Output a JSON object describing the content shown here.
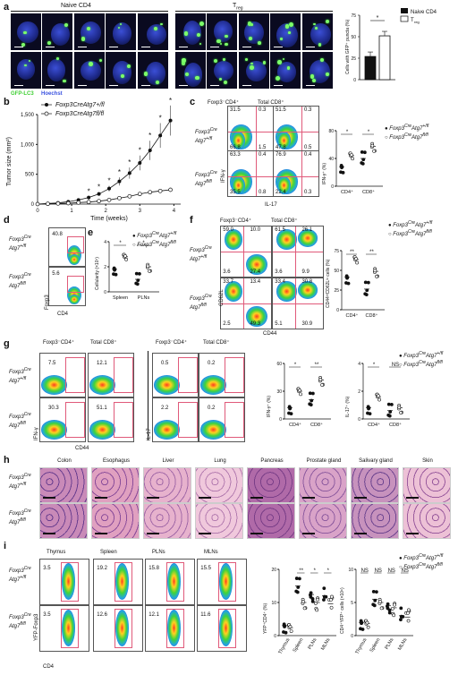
{
  "panels": {
    "a": {
      "letter": "a",
      "naive_label": "Naive CD4",
      "treg_label": "T",
      "treg_sub": "reg",
      "gfp_label": "GFP-LC3",
      "hoechst_label": "Hoechst",
      "ylabel": "Cells with GFP⁺ puncta (%)",
      "legend": [
        "Naive CD4",
        "T",
        "reg"
      ],
      "sig": "*",
      "ticks": [
        "0",
        "25",
        "50",
        "75"
      ]
    },
    "b": {
      "letter": "b",
      "ylabel": "Tumor size (mm²)",
      "xlabel": "Time (weeks)",
      "legend1_pre": "Foxp3",
      "legend1_sup1": "Cre",
      "legend1_mid": "Atg7",
      "legend1_sup2": "+/fl",
      "legend2_pre": "Foxp3",
      "legend2_sup1": "Cre",
      "legend2_mid": "Atg7",
      "legend2_sup2": "fl/fl",
      "yticks": [
        "0",
        "500",
        "1,000",
        "1,500"
      ],
      "xticks": [
        "0",
        "1",
        "2",
        "3",
        "4"
      ]
    },
    "c": {
      "letter": "c",
      "col1": "Foxp3⁻CD4⁺",
      "col2": "Total CD8⁺",
      "row1": [
        "Foxp3",
        "Cre",
        "Atg7",
        "+/fl"
      ],
      "row2": [
        "Foxp3",
        "Cre",
        "Atg7",
        "fl/fl"
      ],
      "q_r1c1": [
        "31.5",
        "0.3",
        "66.8",
        "1.5"
      ],
      "q_r1c2": [
        "51.5",
        "0.3",
        "47.8",
        "0.5"
      ],
      "q_r2c1": [
        "63.3",
        "0.4",
        "35.5",
        "0.8"
      ],
      "q_r2c2": [
        "76.9",
        "0.4",
        "22.4",
        "0.3"
      ],
      "ylab": "IFN-γ",
      "xlab": "IL-17",
      "dot_ylabel": "IFN-γ⁺ (%)",
      "dot_x": [
        "CD4⁺",
        "CD8⁺"
      ],
      "sig": [
        "*",
        "*"
      ],
      "yticks": [
        "0",
        "40",
        "80"
      ]
    },
    "d": {
      "letter": "d",
      "v1": "40.8",
      "v2": "5.6",
      "xlab": "CD4",
      "ylab": "Foxp3"
    },
    "e": {
      "letter": "e",
      "ylabel": "Cellularity (×10⁷)",
      "x": [
        "Spleen",
        "PLNs"
      ],
      "sig": [
        "*",
        "*"
      ],
      "yticks": [
        "0",
        "2",
        "4"
      ]
    },
    "f": {
      "letter": "f",
      "col1": "Foxp3⁻CD4⁺",
      "col2": "Total CD8⁺",
      "q_r1c1": [
        "59.0",
        "10.0",
        "3.6",
        "27.4"
      ],
      "q_r1c2": [
        "61.5",
        "26.1",
        "3.6",
        "9.9"
      ],
      "q_r2c1": [
        "33.7",
        "13.4",
        "2.5",
        "49.3"
      ],
      "q_r2c2": [
        "33.4",
        "30.8",
        "5.1",
        "30.9"
      ],
      "ylab": "CD62L",
      "xlab": "CD44",
      "dot_ylabel": "CD44ʰⁱCD62Lˡᵒ cells (%)",
      "dot_x": [
        "CD4⁺",
        "CD8⁺"
      ],
      "sig": [
        "**",
        "**"
      ],
      "yticks": [
        "0",
        "25",
        "50",
        "75"
      ]
    },
    "g": {
      "letter": "g",
      "cols": [
        "Foxp3⁻CD4⁺",
        "Total CD8⁺",
        "Foxp3⁻CD4⁺",
        "Total CD8⁺"
      ],
      "r1": [
        "7.5",
        "12.1",
        "0.5",
        "0.2"
      ],
      "r2": [
        "30.3",
        "51.1",
        "2.2",
        "0.2"
      ],
      "ylab1": "IFN-γ",
      "ylab2": "IL-17",
      "xlab": "CD44",
      "dot1_ylabel": "IFN-γ⁺ (%)",
      "dot2_ylabel": "IL-17⁺ (%)",
      "dot_x": [
        "CD4⁺",
        "CD8⁺"
      ],
      "sig1": [
        "*",
        "**"
      ],
      "sig2": [
        "*",
        "NS"
      ],
      "yticks1": [
        "0",
        "30",
        "60"
      ],
      "yticks2": [
        "0",
        "2",
        "4"
      ]
    },
    "h": {
      "letter": "h",
      "tissues": [
        "Colon",
        "Esophagus",
        "Liver",
        "Lung",
        "Pancreas",
        "Prostate gland",
        "Salivary gland",
        "Skin"
      ]
    },
    "i": {
      "letter": "i",
      "tissues": [
        "Thymus",
        "Spleen",
        "PLNs",
        "MLNs"
      ],
      "r1": [
        "3.5",
        "19.2",
        "15.8",
        "15.5"
      ],
      "r2": [
        "3.5",
        "12.6",
        "12.1",
        "11.6"
      ],
      "ylab": "YFP-Foxp3",
      "xlab": "CD4",
      "dot1_ylabel": "YFP⁺CD4⁺ (%)",
      "dot2_ylabel": "CD4⁺YFP⁺ cells (×10⁶)",
      "x": [
        "Thymus",
        "Spleen",
        "PLNs",
        "MLNs"
      ],
      "sig1": [
        "",
        "**",
        "*",
        "*"
      ],
      "sig2": [
        "NS",
        "NS",
        "NS",
        "NS"
      ],
      "yticks1": [
        "0",
        "10",
        "20"
      ],
      "yticks2": [
        "0",
        "5",
        "10"
      ]
    },
    "shared_legend": {
      "a_pre": "Foxp3",
      "a_sup1": "Cre",
      "a_mid": "Atg7",
      "a_sup2": "+/fl",
      "b_pre": "Foxp3",
      "b_sup1": "Cre",
      "b_mid": "Atg7",
      "b_sup2": "fl/fl"
    }
  },
  "colors": {
    "black": "#111111",
    "gfp_green": "#7dff6a",
    "nucleus_blue": "#2a3bb5",
    "gate_pink": "#e05a7a",
    "he_pink": "#d98ab5",
    "he_purple": "#6a3f8f"
  }
}
